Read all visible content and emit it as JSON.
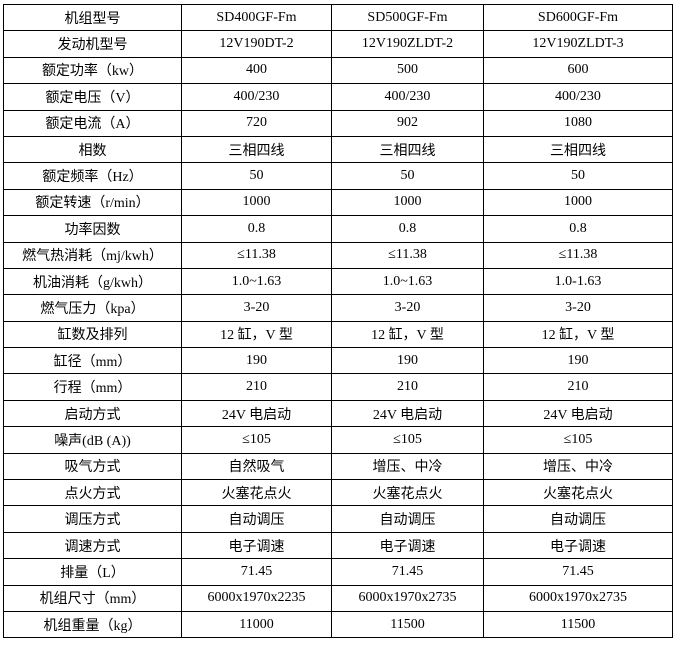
{
  "rows": [
    {
      "label": "机组型号",
      "values": [
        "SD400GF-Fm",
        "SD500GF-Fm",
        "SD600GF-Fm"
      ]
    },
    {
      "label": "发动机型号",
      "values": [
        "12V190DT-2",
        "12V190ZLDT-2",
        "12V190ZLDT-3"
      ]
    },
    {
      "label": "额定功率（kw）",
      "values": [
        "400",
        "500",
        "600"
      ]
    },
    {
      "label": "额定电压（V）",
      "values": [
        "400/230",
        "400/230",
        "400/230"
      ]
    },
    {
      "label": "额定电流（A）",
      "values": [
        "720",
        "902",
        "1080"
      ]
    },
    {
      "label": "相数",
      "values": [
        "三相四线",
        "三相四线",
        "三相四线"
      ]
    },
    {
      "label": "额定频率（Hz）",
      "values": [
        "50",
        "50",
        "50"
      ]
    },
    {
      "label": "额定转速（r/min）",
      "values": [
        "1000",
        "1000",
        "1000"
      ]
    },
    {
      "label": "功率因数",
      "values": [
        "0.8",
        "0.8",
        "0.8"
      ]
    },
    {
      "label": "燃气热消耗（mj/kwh）",
      "values": [
        "≤11.38",
        "≤11.38",
        "≤11.38"
      ]
    },
    {
      "label": "机油消耗（g/kwh）",
      "values": [
        "1.0~1.63",
        "1.0~1.63",
        "1.0-1.63"
      ]
    },
    {
      "label": "燃气压力（kpa）",
      "values": [
        "3-20",
        "3-20",
        "3-20"
      ]
    },
    {
      "label": "缸数及排列",
      "values": [
        "12 缸，V 型",
        "12 缸，V 型",
        "12 缸，V 型"
      ]
    },
    {
      "label": "缸径（mm）",
      "values": [
        "190",
        "190",
        "190"
      ]
    },
    {
      "label": "行程（mm）",
      "values": [
        "210",
        "210",
        "210"
      ]
    },
    {
      "label": "启动方式",
      "values": [
        "24V 电启动",
        "24V 电启动",
        "24V 电启动"
      ]
    },
    {
      "label": "噪声(dB (A))",
      "values": [
        "≤105",
        "≤105",
        "≤105"
      ]
    },
    {
      "label": "吸气方式",
      "values": [
        "自然吸气",
        "增压、中冷",
        "增压、中冷"
      ]
    },
    {
      "label": "点火方式",
      "values": [
        "火塞花点火",
        "火塞花点火",
        "火塞花点火"
      ]
    },
    {
      "label": "调压方式",
      "values": [
        "自动调压",
        "自动调压",
        "自动调压"
      ]
    },
    {
      "label": "调速方式",
      "values": [
        "电子调速",
        "电子调速",
        "电子调速"
      ]
    },
    {
      "label": "排量（L）",
      "values": [
        "71.45",
        "71.45",
        "71.45"
      ]
    },
    {
      "label": "机组尺寸（mm）",
      "values": [
        "6000x1970x2235",
        "6000x1970x2735",
        "6000x1970x2735"
      ]
    },
    {
      "label": "机组重量（kg）",
      "values": [
        "11000",
        "11500",
        "11500"
      ]
    }
  ]
}
